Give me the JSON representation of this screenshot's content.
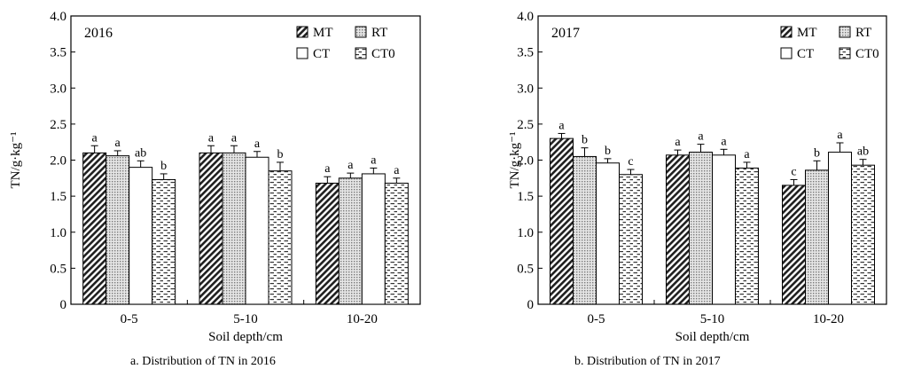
{
  "chart_data": [
    {
      "type": "bar",
      "panel_label": "2016",
      "caption": "a. Distribution of TN in 2016",
      "xlabel": "Soil depth/cm",
      "ylabel": "TN/g·kg⁻¹",
      "ylim": [
        0,
        4.0
      ],
      "yticks": [
        "0",
        "0.5",
        "1.0",
        "1.5",
        "2.0",
        "2.5",
        "3.0",
        "3.5",
        "4.0"
      ],
      "categories": [
        "0-5",
        "5-10",
        "10-20"
      ],
      "legend_position": "top-right",
      "error_bars": true,
      "series": [
        {
          "name": "MT",
          "values": [
            2.1,
            2.1,
            1.68
          ],
          "errors": [
            0.1,
            0.1,
            0.09
          ],
          "labels": [
            "a",
            "a",
            "a"
          ]
        },
        {
          "name": "RT",
          "values": [
            2.06,
            2.1,
            1.75
          ],
          "errors": [
            0.07,
            0.1,
            0.07
          ],
          "labels": [
            "a",
            "a",
            "a"
          ]
        },
        {
          "name": "CT",
          "values": [
            1.9,
            2.04,
            1.81
          ],
          "errors": [
            0.09,
            0.08,
            0.08
          ],
          "labels": [
            "ab",
            "a",
            "a"
          ]
        },
        {
          "name": "CT0",
          "values": [
            1.73,
            1.85,
            1.68
          ],
          "errors": [
            0.08,
            0.12,
            0.07
          ],
          "labels": [
            "b",
            "b",
            "a"
          ]
        }
      ]
    },
    {
      "type": "bar",
      "panel_label": "2017",
      "caption": "b. Distribution of TN in 2017",
      "xlabel": "Soil depth/cm",
      "ylabel": "TN/g·kg⁻¹",
      "ylim": [
        0,
        4.0
      ],
      "yticks": [
        "0",
        "0.5",
        "1.0",
        "1.5",
        "2.0",
        "2.5",
        "3.0",
        "3.5",
        "4.0"
      ],
      "categories": [
        "0-5",
        "5-10",
        "10-20"
      ],
      "legend_position": "top-right",
      "error_bars": true,
      "series": [
        {
          "name": "MT",
          "values": [
            2.3,
            2.07,
            1.65
          ],
          "errors": [
            0.07,
            0.07,
            0.08
          ],
          "labels": [
            "a",
            "a",
            "c"
          ]
        },
        {
          "name": "RT",
          "values": [
            2.05,
            2.11,
            1.86
          ],
          "errors": [
            0.12,
            0.11,
            0.13
          ],
          "labels": [
            "b",
            "a",
            "b"
          ]
        },
        {
          "name": "CT",
          "values": [
            1.96,
            2.07,
            2.11
          ],
          "errors": [
            0.06,
            0.08,
            0.13
          ],
          "labels": [
            "b",
            "a",
            "a"
          ]
        },
        {
          "name": "CT0",
          "values": [
            1.8,
            1.89,
            1.93
          ],
          "errors": [
            0.07,
            0.08,
            0.08
          ],
          "labels": [
            "c",
            "a",
            "ab"
          ]
        }
      ]
    }
  ]
}
